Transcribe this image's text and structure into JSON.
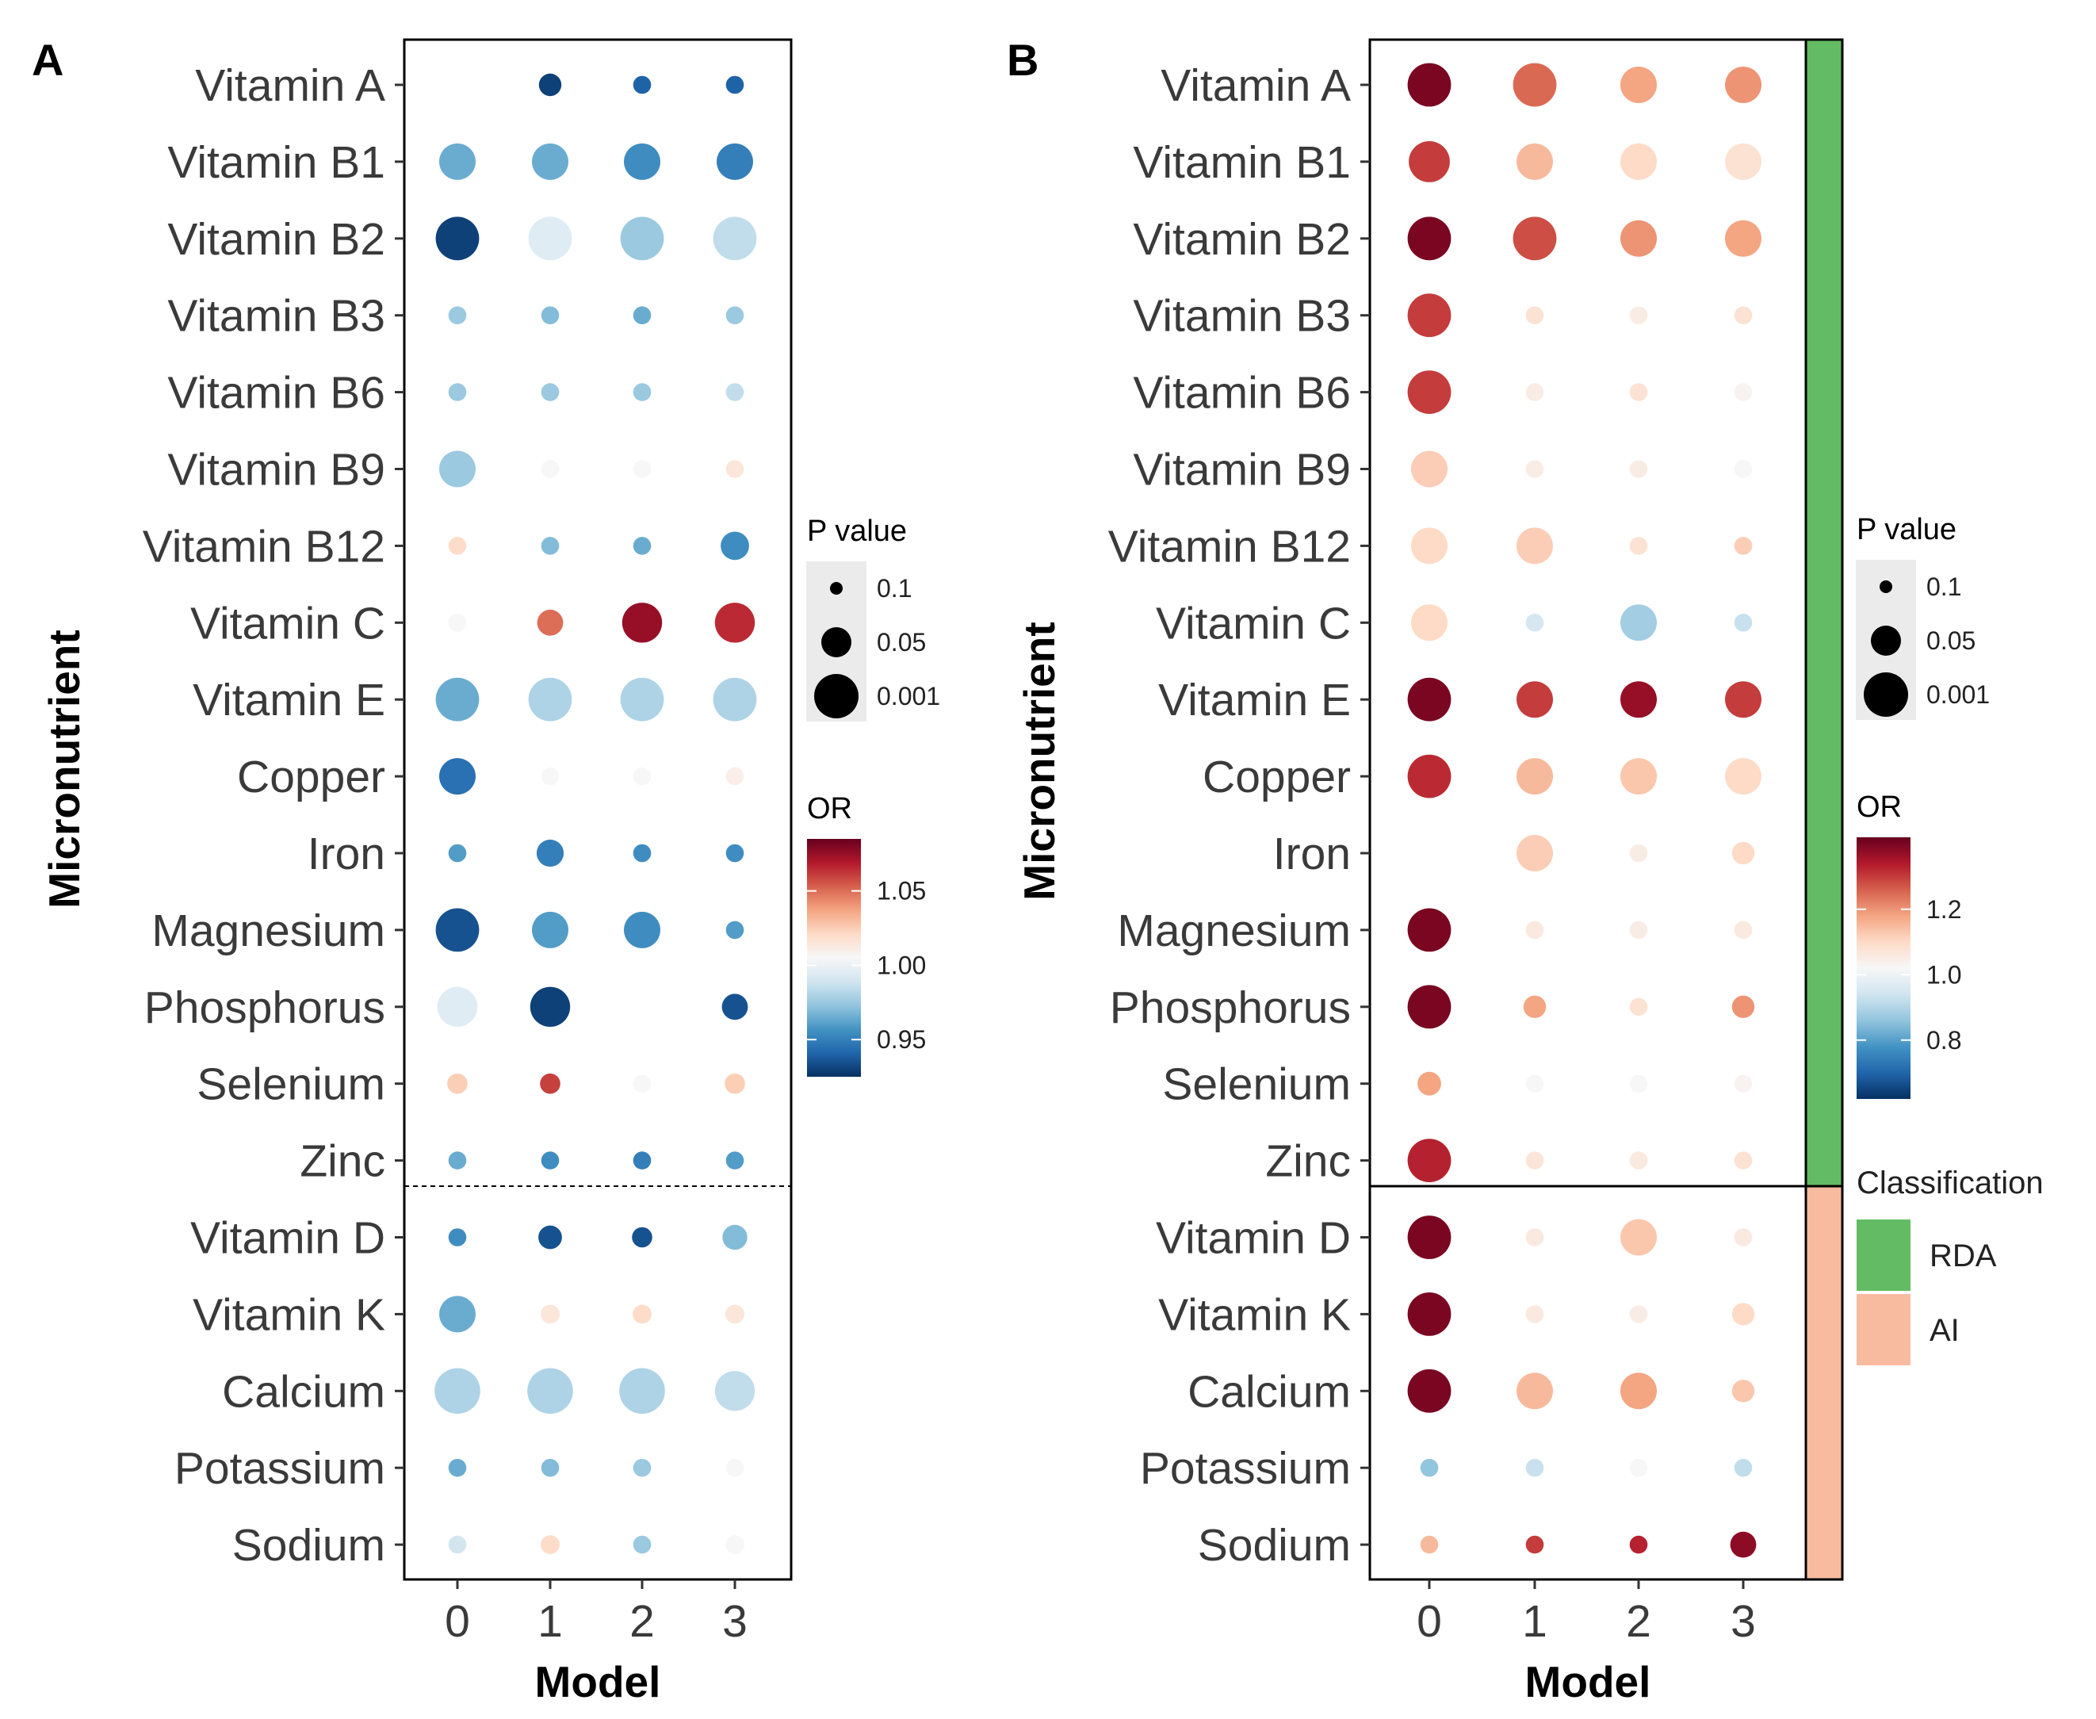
{
  "chart_data": [
    {
      "panel_label": "A",
      "type": "scatter",
      "subtype": "dot-matrix",
      "xlabel": "Model",
      "ylabel": "Micronutrient",
      "x": [
        "0",
        "1",
        "2",
        "3"
      ],
      "categories": [
        "Vitamin A",
        "Vitamin B1",
        "Vitamin B2",
        "Vitamin B3",
        "Vitamin B6",
        "Vitamin B9",
        "Vitamin B12",
        "Vitamin C",
        "Vitamin E",
        "Copper",
        "Iron",
        "Magnesium",
        "Phosphorus",
        "Selenium",
        "Zinc",
        "Vitamin D",
        "Vitamin K",
        "Calcium",
        "Potassium",
        "Sodium"
      ],
      "separator_after": "Zinc",
      "separator_style": "dotted",
      "or_range": [
        0.925,
        1.085
      ],
      "size_note": "dot size encodes -log10(P value); value 0 means no dot shown",
      "or": [
        [
          null,
          0.93,
          0.94,
          0.94
        ],
        [
          0.965,
          0.965,
          0.955,
          0.95
        ],
        [
          0.93,
          0.995,
          0.975,
          0.985
        ],
        [
          0.975,
          0.97,
          0.965,
          0.975
        ],
        [
          0.975,
          0.975,
          0.975,
          0.985
        ],
        [
          0.975,
          1.005,
          1.005,
          1.015
        ],
        [
          1.02,
          0.97,
          0.965,
          0.955
        ],
        [
          1.005,
          1.05,
          1.075,
          1.065
        ],
        [
          0.965,
          0.98,
          0.98,
          0.98
        ],
        [
          0.945,
          1.005,
          1.005,
          1.01
        ],
        [
          0.96,
          0.95,
          0.955,
          0.955
        ],
        [
          0.935,
          0.96,
          0.955,
          0.96
        ],
        [
          0.995,
          0.93,
          null,
          0.935
        ],
        [
          1.025,
          1.06,
          1.005,
          1.025
        ],
        [
          0.965,
          0.955,
          0.95,
          0.96
        ],
        [
          0.955,
          0.935,
          0.935,
          0.97
        ],
        [
          0.965,
          1.015,
          1.02,
          1.015
        ],
        [
          0.98,
          0.98,
          0.98,
          0.985
        ],
        [
          0.965,
          0.97,
          0.975,
          1.005
        ],
        [
          0.99,
          1.02,
          0.975,
          1.005
        ]
      ],
      "logp": [
        [
          0,
          1.4,
          1.0,
          1.0
        ],
        [
          2.6,
          2.6,
          2.6,
          2.6
        ],
        [
          3.2,
          3.2,
          3.2,
          3.2
        ],
        [
          1.0,
          1.0,
          1.0,
          1.0
        ],
        [
          1.0,
          1.0,
          1.0,
          1.0
        ],
        [
          2.6,
          1.0,
          1.0,
          1.0
        ],
        [
          1.0,
          1.0,
          1.0,
          1.9
        ],
        [
          1.0,
          1.7,
          2.9,
          2.9
        ],
        [
          3.2,
          3.2,
          3.2,
          3.2
        ],
        [
          2.6,
          1.0,
          1.0,
          1.0
        ],
        [
          1.0,
          1.8,
          1.0,
          1.0
        ],
        [
          3.2,
          2.6,
          2.6,
          1.0
        ],
        [
          2.9,
          2.9,
          0,
          1.7
        ],
        [
          1.2,
          1.2,
          1.0,
          1.2
        ],
        [
          1.0,
          1.0,
          1.0,
          1.0
        ],
        [
          1.0,
          1.5,
          1.2,
          1.6
        ],
        [
          2.6,
          1.1,
          1.1,
          1.1
        ],
        [
          3.4,
          3.4,
          3.4,
          2.9
        ],
        [
          1.0,
          1.0,
          1.0,
          1.0
        ],
        [
          1.0,
          1.1,
          1.0,
          1.1
        ]
      ],
      "legend": {
        "p_title": "P value",
        "p_labels": [
          "0.1",
          "0.05",
          "0.001"
        ],
        "or_title": "OR",
        "or_ticks": [
          "1.05",
          "1.00",
          "0.95"
        ],
        "or_tick_values": [
          1.05,
          1.0,
          0.95
        ]
      }
    },
    {
      "panel_label": "B",
      "type": "scatter",
      "subtype": "dot-matrix",
      "xlabel": "Model",
      "ylabel": "Micronutrient",
      "x": [
        "0",
        "1",
        "2",
        "3"
      ],
      "categories": [
        "Vitamin A",
        "Vitamin B1",
        "Vitamin B2",
        "Vitamin B3",
        "Vitamin B6",
        "Vitamin B9",
        "Vitamin B12",
        "Vitamin C",
        "Vitamin E",
        "Copper",
        "Iron",
        "Magnesium",
        "Phosphorus",
        "Selenium",
        "Zinc",
        "Vitamin D",
        "Vitamin K",
        "Calcium",
        "Potassium",
        "Sodium"
      ],
      "separator_after": "Zinc",
      "separator_style": "solid",
      "or_range": [
        0.62,
        1.42
      ],
      "size_note": "dot size encodes -log10(P value); value 0 means no dot shown",
      "or": [
        [
          1.4,
          1.25,
          1.18,
          1.2
        ],
        [
          1.3,
          1.15,
          1.1,
          1.08
        ],
        [
          1.4,
          1.28,
          1.2,
          1.18
        ],
        [
          1.3,
          1.08,
          1.05,
          1.08
        ],
        [
          1.3,
          1.05,
          1.08,
          1.03
        ],
        [
          1.12,
          1.05,
          1.05,
          1.02
        ],
        [
          1.1,
          1.12,
          1.08,
          1.12
        ],
        [
          1.1,
          0.95,
          0.88,
          0.93
        ],
        [
          1.4,
          1.3,
          1.37,
          1.3
        ],
        [
          1.32,
          1.15,
          1.13,
          1.1
        ],
        [
          null,
          1.12,
          1.05,
          1.1
        ],
        [
          1.4,
          1.06,
          1.05,
          1.06
        ],
        [
          1.4,
          1.18,
          1.08,
          1.2
        ],
        [
          1.18,
          1.02,
          1.02,
          1.03
        ],
        [
          1.33,
          1.07,
          1.06,
          1.08
        ],
        [
          1.4,
          1.06,
          1.13,
          1.06
        ],
        [
          1.4,
          1.06,
          1.05,
          1.1
        ],
        [
          1.4,
          1.15,
          1.18,
          1.13
        ],
        [
          0.86,
          0.93,
          1.02,
          0.92
        ],
        [
          1.15,
          1.3,
          1.33,
          1.38
        ]
      ],
      "logp": [
        [
          3.2,
          3.2,
          2.6,
          2.6
        ],
        [
          3.0,
          2.6,
          2.6,
          2.6
        ],
        [
          3.2,
          3.2,
          2.6,
          2.6
        ],
        [
          3.2,
          1.0,
          1.0,
          1.0
        ],
        [
          3.2,
          1.0,
          1.0,
          1.0
        ],
        [
          2.6,
          1.0,
          1.0,
          1.0
        ],
        [
          2.6,
          2.6,
          1.0,
          1.0
        ],
        [
          2.6,
          1.0,
          2.6,
          1.0
        ],
        [
          3.2,
          2.6,
          2.6,
          2.6
        ],
        [
          3.2,
          2.6,
          2.6,
          2.6
        ],
        [
          0,
          2.6,
          1.0,
          1.4
        ],
        [
          3.2,
          1.0,
          1.0,
          1.0
        ],
        [
          3.2,
          1.4,
          1.0,
          1.4
        ],
        [
          1.5,
          1.0,
          1.0,
          1.0
        ],
        [
          3.2,
          1.0,
          1.0,
          1.0
        ],
        [
          3.2,
          1.0,
          2.6,
          1.0
        ],
        [
          3.2,
          1.0,
          1.0,
          1.4
        ],
        [
          3.2,
          2.6,
          2.6,
          1.4
        ],
        [
          1.0,
          1.0,
          1.0,
          1.0
        ],
        [
          1.0,
          1.0,
          1.0,
          1.7
        ]
      ],
      "legend": {
        "p_title": "P value",
        "p_labels": [
          "0.1",
          "0.05",
          "0.001"
        ],
        "or_title": "OR",
        "or_ticks": [
          "1.2",
          "1.0",
          "0.8"
        ],
        "or_tick_values": [
          1.2,
          1.0,
          0.8
        ]
      },
      "classification": {
        "title": "Classification",
        "groups": [
          {
            "label": "RDA",
            "color": "#63bc63",
            "from": "Vitamin A",
            "to": "Zinc"
          },
          {
            "label": "AI",
            "color": "#f9bba0",
            "from": "Vitamin D",
            "to": "Sodium"
          }
        ]
      }
    }
  ],
  "colormap": [
    "#053061",
    "#2166ac",
    "#4393c3",
    "#92c5de",
    "#d1e5f0",
    "#f7f7f7",
    "#fddbc7",
    "#f4a582",
    "#d6604d",
    "#b2182b",
    "#67001f"
  ]
}
